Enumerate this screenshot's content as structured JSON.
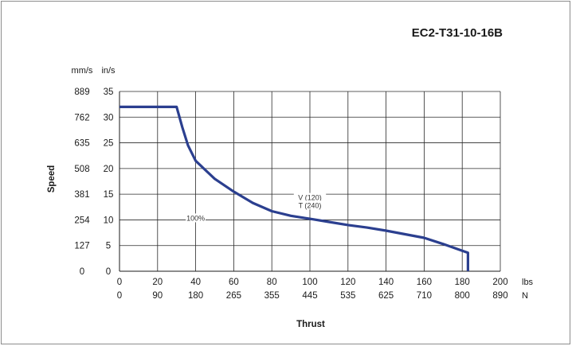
{
  "chart_data": {
    "type": "line",
    "title": "EC2-T31-10-16B",
    "xlabel": "Thrust",
    "ylabel": "Speed",
    "x_unit_primary": "lbs",
    "x_unit_secondary": "N",
    "y_unit_primary": "in/s",
    "y_unit_secondary": "mm/s",
    "xlim": [
      0,
      200
    ],
    "ylim": [
      0,
      35
    ],
    "x_ticks_lbs": [
      "0",
      "20",
      "40",
      "60",
      "80",
      "100",
      "120",
      "140",
      "160",
      "180",
      "200"
    ],
    "x_ticks_N": [
      "0",
      "90",
      "180",
      "265",
      "355",
      "445",
      "535",
      "625",
      "710",
      "800",
      "890"
    ],
    "y_ticks_in": [
      "0",
      "5",
      "10",
      "15",
      "20",
      "25",
      "30",
      "35"
    ],
    "y_ticks_mm": [
      "0",
      "127",
      "254",
      "381",
      "508",
      "635",
      "762",
      "889"
    ],
    "grid": true,
    "series": [
      {
        "color": "#2b3f8f",
        "x": [
          0,
          30,
          33,
          36,
          40,
          50,
          60,
          70,
          80,
          90,
          100,
          110,
          120,
          130,
          140,
          150,
          160,
          170,
          180,
          183,
          183
        ],
        "y": [
          32,
          32,
          28,
          24.5,
          21.5,
          18,
          15.5,
          13.3,
          11.7,
          10.8,
          10.2,
          9.6,
          9,
          8.5,
          7.9,
          7.2,
          6.5,
          5.3,
          4,
          3.6,
          0
        ]
      }
    ],
    "annotations": [
      {
        "text": "V (120)",
        "x": 100,
        "y": 14
      },
      {
        "text": "T (240)",
        "x": 100,
        "y": 12.5
      },
      {
        "text": "100%",
        "x": 40,
        "y": 10
      }
    ]
  }
}
